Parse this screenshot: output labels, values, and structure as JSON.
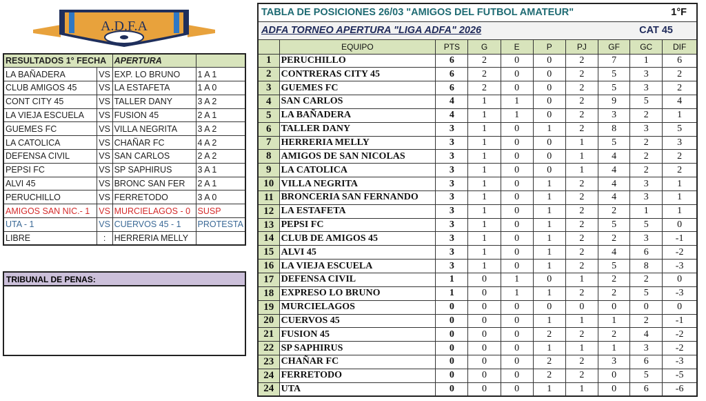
{
  "logo": {
    "text": "A.D.F.A",
    "colors": {
      "gold": "#e8a23c",
      "navy": "#1f2f5c",
      "blue": "#2f78c4"
    }
  },
  "results": {
    "header": {
      "title": "RESULTADOS 1° FECHA",
      "tournament": "APERTURA"
    },
    "rows": [
      [
        "LA BAÑADERA",
        "VS",
        "EXP. LO BRUNO",
        "1 A 1",
        ""
      ],
      [
        "CLUB AMIGOS 45",
        "VS",
        "LA ESTAFETA",
        "1 A 0",
        ""
      ],
      [
        "CONT CITY 45",
        "VS",
        "TALLER DANY",
        "3 A 2",
        ""
      ],
      [
        "LA VIEJA ESCUELA",
        "VS",
        "FUSION 45",
        "2 A 1",
        ""
      ],
      [
        "GUEMES FC",
        "VS",
        "VILLA NEGRITA",
        "3 A 2",
        ""
      ],
      [
        "LA CATOLICA",
        "VS",
        "CHAÑAR FC",
        "4 A 2",
        ""
      ],
      [
        "DEFENSA CIVIL",
        "VS",
        "SAN CARLOS",
        "2 A 2",
        ""
      ],
      [
        "PEPSI FC",
        "VS",
        "SP SAPHIRUS",
        "3 A 1",
        ""
      ],
      [
        "ALVI 45",
        "VS",
        "BRONC SAN FER",
        "2 A 1",
        ""
      ],
      [
        "PERUCHILLO",
        "VS",
        "FERRETODO",
        "3 A 0",
        ""
      ],
      [
        "AMIGOS SAN NIC.- 1",
        "VS",
        "MURCIELAGOS - 0",
        "SUSP",
        "red"
      ],
      [
        "UTA - 1",
        "VS",
        "CUERVOS 45 - 1",
        "PROTESTA",
        "blue"
      ],
      [
        "LIBRE",
        ":",
        "HERRERIA MELLY",
        "",
        ""
      ]
    ],
    "colors": {
      "header": "#d8e4bc",
      "suspended": "#d42a2a",
      "protest": "#3b6996"
    }
  },
  "tribunal": {
    "title": "TRIBUNAL DE PENAS:",
    "color": "#ccc0da"
  },
  "standings": {
    "title": "TABLA DE POSICIONES  26/03    \"AMIGOS DEL FUTBOL AMATEUR\"",
    "round": "1°F",
    "subtitle": "ADFA TORNEO APERTURA  \"LIGA ADFA\" 2026",
    "category": "CAT 45",
    "columns": [
      "",
      "EQUIPO",
      "PTS",
      "G",
      "E",
      "P",
      "PJ",
      "GF",
      "GC",
      "DIF"
    ],
    "rows": [
      [
        "1",
        "PERUCHILLO",
        "6",
        "2",
        "0",
        "0",
        "2",
        "7",
        "1",
        "6"
      ],
      [
        "2",
        "CONTRERAS CITY 45",
        "6",
        "2",
        "0",
        "0",
        "2",
        "5",
        "3",
        "2"
      ],
      [
        "3",
        "GUEMES FC",
        "6",
        "2",
        "0",
        "0",
        "2",
        "5",
        "3",
        "2"
      ],
      [
        "4",
        "SAN CARLOS",
        "4",
        "1",
        "1",
        "0",
        "2",
        "9",
        "5",
        "4"
      ],
      [
        "5",
        "LA BAÑADERA",
        "4",
        "1",
        "1",
        "0",
        "2",
        "3",
        "2",
        "1"
      ],
      [
        "6",
        "TALLER DANY",
        "3",
        "1",
        "0",
        "1",
        "2",
        "8",
        "3",
        "5"
      ],
      [
        "7",
        "HERRERIA MELLY",
        "3",
        "1",
        "0",
        "0",
        "1",
        "5",
        "2",
        "3"
      ],
      [
        "8",
        "AMIGOS DE SAN NICOLAS",
        "3",
        "1",
        "0",
        "0",
        "1",
        "4",
        "2",
        "2"
      ],
      [
        "9",
        "LA CATOLICA",
        "3",
        "1",
        "0",
        "0",
        "1",
        "4",
        "2",
        "2"
      ],
      [
        "10",
        "VILLA NEGRITA",
        "3",
        "1",
        "0",
        "1",
        "2",
        "4",
        "3",
        "1"
      ],
      [
        "11",
        "BRONCERIA SAN FERNANDO",
        "3",
        "1",
        "0",
        "1",
        "2",
        "4",
        "3",
        "1"
      ],
      [
        "12",
        "LA ESTAFETA",
        "3",
        "1",
        "0",
        "1",
        "2",
        "2",
        "1",
        "1"
      ],
      [
        "13",
        "PEPSI FC",
        "3",
        "1",
        "0",
        "1",
        "2",
        "5",
        "5",
        "0"
      ],
      [
        "14",
        "CLUB DE AMIGOS 45",
        "3",
        "1",
        "0",
        "1",
        "2",
        "2",
        "3",
        "-1"
      ],
      [
        "15",
        "ALVI 45",
        "3",
        "1",
        "0",
        "1",
        "2",
        "4",
        "6",
        "-2"
      ],
      [
        "16",
        "LA VIEJA ESCUELA",
        "3",
        "1",
        "0",
        "1",
        "2",
        "5",
        "8",
        "-3"
      ],
      [
        "17",
        "DEFENSA CIVIL",
        "1",
        "0",
        "1",
        "0",
        "1",
        "2",
        "2",
        "0"
      ],
      [
        "18",
        "EXPRESO LO BRUNO",
        "1",
        "0",
        "1",
        "1",
        "2",
        "2",
        "5",
        "-3"
      ],
      [
        "19",
        "MURCIELAGOS",
        "0",
        "0",
        "0",
        "0",
        "0",
        "0",
        "0",
        "0"
      ],
      [
        "20",
        "CUERVOS 45",
        "0",
        "0",
        "0",
        "1",
        "1",
        "1",
        "2",
        "-1"
      ],
      [
        "21",
        "FUSION 45",
        "0",
        "0",
        "0",
        "2",
        "2",
        "2",
        "4",
        "-2"
      ],
      [
        "22",
        "SP SAPHIRUS",
        "0",
        "0",
        "0",
        "1",
        "1",
        "1",
        "3",
        "-2"
      ],
      [
        "23",
        "CHAÑAR FC",
        "0",
        "0",
        "0",
        "2",
        "2",
        "3",
        "6",
        "-3"
      ],
      [
        "24",
        "FERRETODO",
        "0",
        "0",
        "0",
        "2",
        "2",
        "0",
        "5",
        "-5"
      ],
      [
        "24",
        "UTA",
        "0",
        "0",
        "0",
        "1",
        "1",
        "0",
        "6",
        "-6"
      ]
    ]
  }
}
